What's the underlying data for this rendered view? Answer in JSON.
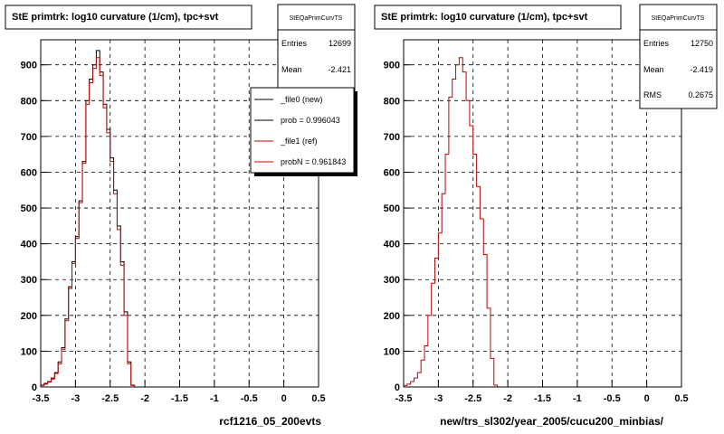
{
  "chart_data": [
    {
      "type": "histogram",
      "title": "StE primtrk: log10 curvature (1/cm), tpc+svt",
      "xlabel": "rcf1216_05_200evts",
      "xlim": [
        -3.5,
        0.5
      ],
      "ylim": [
        0,
        970
      ],
      "x_ticks": [
        "-3.5",
        "-3",
        "-2.5",
        "-2",
        "-1.5",
        "-1",
        "-0.5",
        "0",
        "0.5"
      ],
      "y_ticks": [
        "0",
        "100",
        "200",
        "300",
        "400",
        "500",
        "600",
        "700",
        "800",
        "900"
      ],
      "grid": true,
      "bin_width": 0.05,
      "bin_start": -3.5,
      "series": [
        {
          "name": "_file0 (new)",
          "color": "#000000",
          "values": [
            5,
            10,
            15,
            25,
            40,
            70,
            110,
            190,
            280,
            350,
            420,
            520,
            630,
            800,
            860,
            900,
            940,
            880,
            790,
            720,
            640,
            550,
            450,
            350,
            210,
            70,
            5,
            0
          ]
        },
        {
          "name": "_file1 (ref)",
          "color": "#cc0000",
          "values": [
            4,
            8,
            14,
            22,
            38,
            65,
            105,
            185,
            275,
            345,
            415,
            515,
            625,
            790,
            850,
            890,
            920,
            870,
            780,
            710,
            630,
            540,
            440,
            340,
            200,
            65,
            4,
            0
          ]
        }
      ],
      "stats": {
        "name": "StEQaPrimCurvTS",
        "entries_label": "Entries",
        "entries": "12699",
        "mean_label": "Mean",
        "mean": "-2.421"
      },
      "legend": {
        "placement": "top-right",
        "items": [
          "_file0 (new)",
          "prob = 0.996043",
          "_file1 (ref)",
          "probN = 0.961843"
        ]
      }
    },
    {
      "type": "histogram",
      "title": "StE primtrk: log10 curvature (1/cm), tpc+svt",
      "xlabel": "new/trs_sl302/year_2005/cucu200_minbias/",
      "xlim": [
        -3.5,
        0.5
      ],
      "ylim": [
        0,
        970
      ],
      "x_ticks": [
        "-3.5",
        "-3",
        "-2.5",
        "-2",
        "-1.5",
        "-1",
        "-0.5",
        "0",
        "0.5"
      ],
      "y_ticks": [
        "0",
        "100",
        "200",
        "300",
        "400",
        "500",
        "600",
        "700",
        "800",
        "900"
      ],
      "grid": true,
      "bin_width": 0.05,
      "bin_start": -3.5,
      "series": [
        {
          "name": "",
          "color": "#cc0000",
          "values": [
            4,
            8,
            15,
            25,
            40,
            75,
            115,
            200,
            290,
            360,
            430,
            540,
            650,
            810,
            860,
            900,
            920,
            880,
            800,
            730,
            650,
            560,
            470,
            370,
            220,
            80,
            5,
            0
          ]
        }
      ],
      "stats": {
        "name": "StEQaPrimCurvTS",
        "entries_label": "Entries",
        "entries": "12750",
        "mean_label": "Mean",
        "mean": "-2.419",
        "rms_label": "RMS",
        "rms": "0.2675"
      }
    }
  ]
}
